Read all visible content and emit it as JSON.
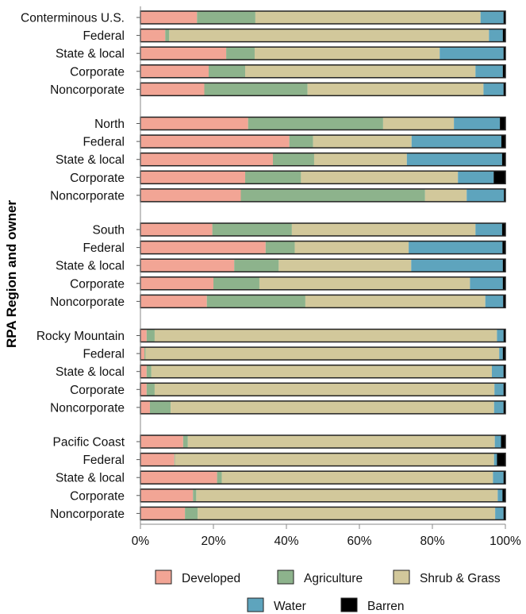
{
  "chart_data": {
    "type": "bar",
    "orientation": "horizontal",
    "stacked": true,
    "percent": true,
    "ylabel": "RPA Region and owner",
    "xlabel": "",
    "xlim": [
      0,
      100
    ],
    "x_ticks": [
      "0%",
      "20%",
      "40%",
      "60%",
      "80%",
      "100%"
    ],
    "grid": false,
    "legend_position": "bottom",
    "groups": [
      {
        "categories": [
          "Conterminous U.S.",
          "Federal",
          "State & local",
          "Corporate",
          "Noncorporate"
        ]
      },
      {
        "categories": [
          "North",
          "Federal",
          "State & local",
          "Corporate",
          "Noncorporate"
        ]
      },
      {
        "categories": [
          "South",
          "Federal",
          "State & local",
          "Corporate",
          "Noncorporate"
        ]
      },
      {
        "categories": [
          "Rocky Mountain",
          "Federal",
          "State & local",
          "Corporate",
          "Noncorporate"
        ]
      },
      {
        "categories": [
          "Pacific Coast",
          "Federal",
          "State & local",
          "Corporate",
          "Noncorporate"
        ]
      }
    ],
    "series": [
      {
        "name": "Developed",
        "color": "#f2a595",
        "values": [
          15.5,
          6.8,
          23.5,
          18.7,
          17.5,
          29.5,
          40.8,
          36.3,
          28.7,
          27.5,
          19.7,
          34.3,
          25.7,
          20.0,
          18.2,
          1.7,
          1.1,
          1.7,
          1.7,
          2.6,
          11.7,
          9.3,
          21.0,
          14.4,
          12.2
        ]
      },
      {
        "name": "Agriculture",
        "color": "#8db38c",
        "values": [
          16.0,
          1.1,
          7.8,
          10.0,
          28.3,
          37.0,
          6.5,
          11.3,
          15.3,
          50.5,
          21.8,
          8.0,
          12.2,
          12.6,
          27.0,
          2.2,
          0.3,
          1.3,
          2.2,
          5.7,
          1.3,
          0.2,
          1.3,
          0.9,
          3.5
        ]
      },
      {
        "name": "Shrub & Grass",
        "color": "#d2c89b",
        "values": [
          61.7,
          87.6,
          50.7,
          63.1,
          48.2,
          19.4,
          27.0,
          25.4,
          43.0,
          11.4,
          50.3,
          31.2,
          36.3,
          57.7,
          49.3,
          93.8,
          96.9,
          93.3,
          93.1,
          88.6,
          84.1,
          87.4,
          74.3,
          82.6,
          81.5
        ]
      },
      {
        "name": "Water",
        "color": "#5ea4bd",
        "values": [
          6.3,
          3.8,
          17.5,
          7.5,
          5.5,
          12.6,
          24.6,
          26.1,
          9.8,
          10.2,
          7.3,
          25.7,
          25.1,
          9.0,
          4.9,
          1.8,
          1.0,
          3.2,
          2.5,
          2.6,
          1.7,
          0.8,
          2.9,
          1.3,
          2.3
        ]
      },
      {
        "name": "Barren",
        "color": "#000000",
        "values": [
          0.5,
          0.7,
          0.5,
          0.7,
          0.5,
          1.5,
          1.1,
          0.9,
          3.2,
          0.4,
          0.9,
          0.8,
          0.7,
          0.7,
          0.6,
          0.5,
          0.7,
          0.5,
          0.5,
          0.5,
          1.2,
          2.3,
          0.5,
          0.8,
          0.5
        ]
      }
    ]
  }
}
